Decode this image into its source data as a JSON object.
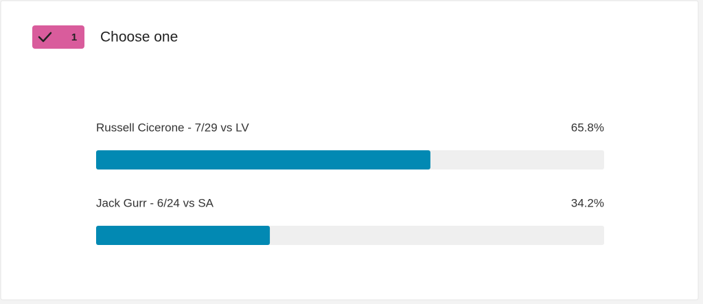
{
  "question": {
    "number": "1",
    "title": "Choose one"
  },
  "chart_data": {
    "type": "bar",
    "orientation": "horizontal",
    "categories": [
      "Russell Cicerone - 7/29 vs LV",
      "Jack Gurr - 6/24 vs SA"
    ],
    "values": [
      65.8,
      34.2
    ],
    "value_labels": [
      "65.8%",
      "34.2%"
    ],
    "color": "#0289b3",
    "xlim": [
      0,
      100
    ]
  }
}
